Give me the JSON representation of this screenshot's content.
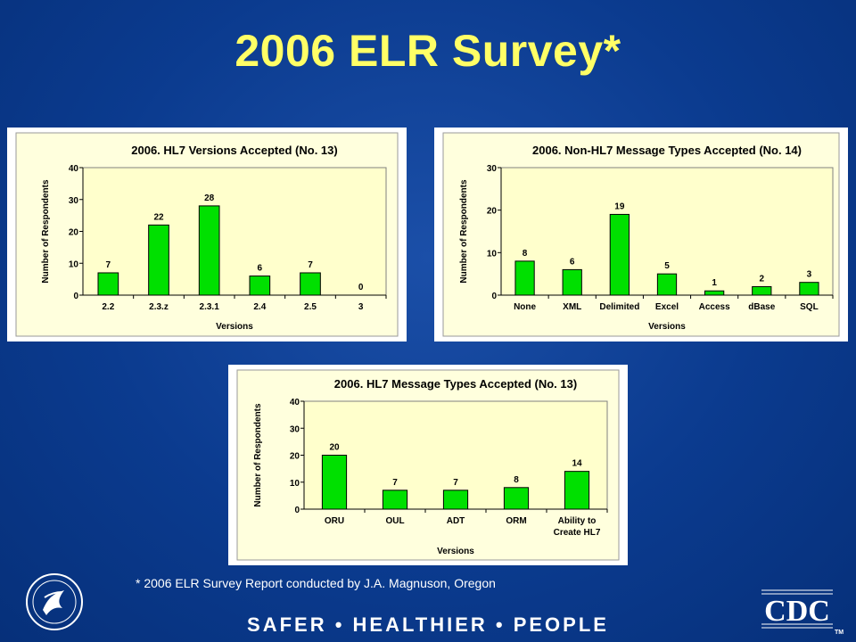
{
  "slide": {
    "title": "2006 ELR Survey*",
    "footnote": "* 2006 ELR Survey Report conducted by J.A. Magnuson, Oregon",
    "tagline": "SAFER • HEALTHIER • PEOPLE",
    "logos": {
      "left": "hhs-eagle-seal",
      "right": "CDC",
      "right_mark": "TM"
    }
  },
  "chart_data": [
    {
      "type": "bar",
      "title": "2006. HL7 Versions Accepted (No. 13)",
      "xlabel": "Versions",
      "ylabel": "Number of Respondents",
      "categories": [
        "2.2",
        "2.3.z",
        "2.3.1",
        "2.4",
        "2.5",
        "3"
      ],
      "values": [
        7,
        22,
        28,
        6,
        7,
        0
      ],
      "ylim": [
        0,
        40
      ],
      "yticks": [
        0,
        10,
        20,
        30,
        40
      ],
      "bar_color": "#00e000",
      "plot_bg": "#ffffcc",
      "grid": false
    },
    {
      "type": "bar",
      "title": "2006. Non-HL7 Message Types Accepted (No. 14)",
      "xlabel": "Versions",
      "ylabel": "Number of Respondents",
      "categories": [
        "None",
        "XML",
        "Delimited",
        "Excel",
        "Access",
        "dBase",
        "SQL"
      ],
      "values": [
        8,
        6,
        19,
        5,
        1,
        2,
        3
      ],
      "ylim": [
        0,
        30
      ],
      "yticks": [
        0,
        10,
        20,
        30
      ],
      "bar_color": "#00e000",
      "plot_bg": "#ffffcc",
      "grid": false
    },
    {
      "type": "bar",
      "title": "2006. HL7 Message Types Accepted (No. 13)",
      "xlabel": "Versions",
      "ylabel": "Number of Respondents",
      "categories": [
        "ORU",
        "OUL",
        "ADT",
        "ORM",
        "Ability to Create HL7"
      ],
      "category_lines": [
        [
          "ORU"
        ],
        [
          "OUL"
        ],
        [
          "ADT"
        ],
        [
          "ORM"
        ],
        [
          "Ability to",
          "Create HL7"
        ]
      ],
      "values": [
        20,
        7,
        7,
        8,
        14
      ],
      "ylim": [
        0,
        40
      ],
      "yticks": [
        0,
        10,
        20,
        30,
        40
      ],
      "bar_color": "#00e000",
      "plot_bg": "#ffffcc",
      "grid": false
    }
  ]
}
